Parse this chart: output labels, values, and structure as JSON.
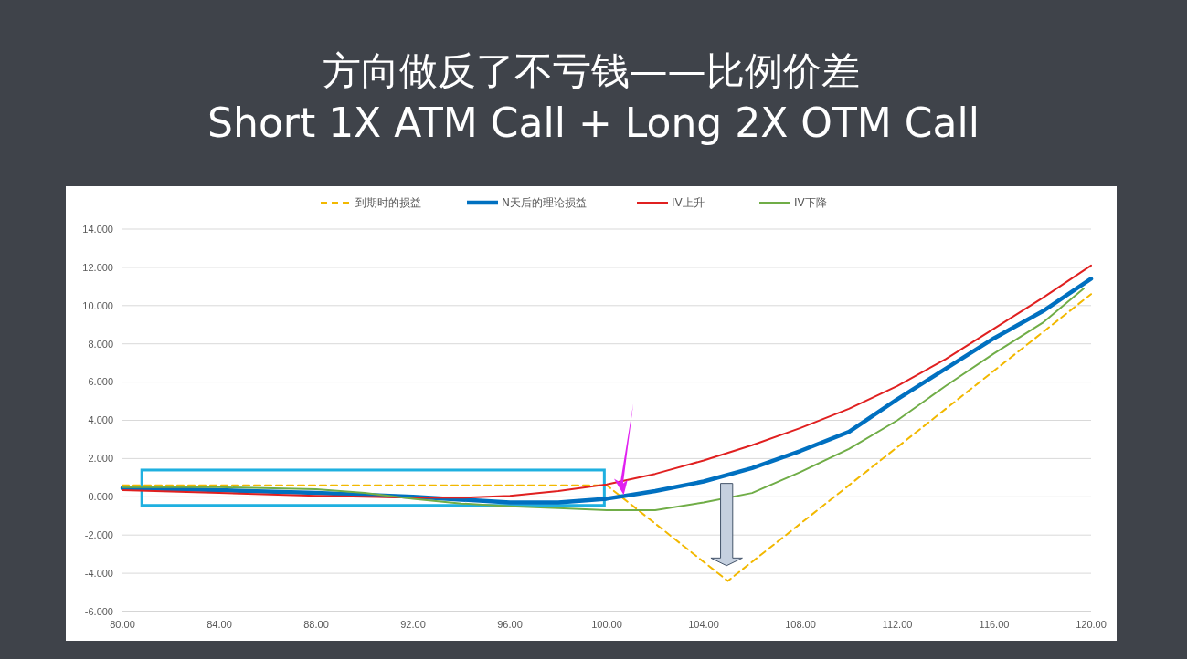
{
  "chart_data": {
    "type": "line",
    "title": "方向做反了不亏钱——比例价差",
    "subtitle": "Short 1X ATM Call + Long 2X OTM Call",
    "xlim": [
      80,
      120
    ],
    "ylim": [
      -6,
      14
    ],
    "xticks": [
      {
        "value": 80,
        "label": "80.00"
      },
      {
        "value": 84,
        "label": "84.00"
      },
      {
        "value": 88,
        "label": "88.00"
      },
      {
        "value": 92,
        "label": "92.00"
      },
      {
        "value": 96,
        "label": "96.00"
      },
      {
        "value": 100,
        "label": "100.00"
      },
      {
        "value": 104,
        "label": "104.00"
      },
      {
        "value": 108,
        "label": "108.00"
      },
      {
        "value": 112,
        "label": "112.00"
      },
      {
        "value": 116,
        "label": "116.00"
      },
      {
        "value": 120,
        "label": "120.00"
      }
    ],
    "yticks": [
      {
        "value": -6,
        "label": "-6.000"
      },
      {
        "value": -4,
        "label": "-4.000"
      },
      {
        "value": -2,
        "label": "-2.000"
      },
      {
        "value": 0,
        "label": "0.000"
      },
      {
        "value": 2,
        "label": "2.000"
      },
      {
        "value": 4,
        "label": "4.000"
      },
      {
        "value": 6,
        "label": "6.000"
      },
      {
        "value": 8,
        "label": "8.000"
      },
      {
        "value": 10,
        "label": "10.000"
      },
      {
        "value": 12,
        "label": "12.000"
      },
      {
        "value": 14,
        "label": "14.000"
      }
    ],
    "grid": "y",
    "legend": "top",
    "marker": "none",
    "series": [
      {
        "name": "到期时的损益",
        "color": "#f2b800",
        "line_style": "dashed",
        "x": [
          80,
          100,
          105,
          120
        ],
        "values": [
          0.6,
          0.6,
          -4.4,
          10.6
        ]
      },
      {
        "name": "N天后的理论损益",
        "color": "#0070c0",
        "line_style": "solid",
        "x": [
          80,
          84,
          88,
          92,
          94,
          96,
          98,
          100,
          101,
          102,
          104,
          106,
          108,
          110,
          112,
          114,
          116,
          118,
          120
        ],
        "values": [
          0.45,
          0.35,
          0.2,
          0,
          -0.15,
          -0.3,
          -0.3,
          -0.1,
          0.1,
          0.3,
          0.8,
          1.5,
          2.4,
          3.4,
          5.1,
          6.7,
          8.3,
          9.7,
          11.4
        ]
      },
      {
        "name": "IV上升",
        "color": "#e02020",
        "line_style": "solid",
        "x": [
          80,
          84,
          88,
          92,
          94,
          96,
          98,
          100,
          102,
          104,
          106,
          108,
          110,
          112,
          114,
          116,
          118,
          120
        ],
        "values": [
          0.35,
          0.2,
          0.05,
          -0.05,
          -0.05,
          0.05,
          0.3,
          0.65,
          1.2,
          1.9,
          2.7,
          3.6,
          4.6,
          5.8,
          7.2,
          8.8,
          10.4,
          12.1
        ]
      },
      {
        "name": "IV下降",
        "color": "#70ad47",
        "line_style": "solid",
        "x": [
          80,
          84,
          88,
          90,
          92,
          94,
          96,
          98,
          100,
          102,
          104,
          106,
          108,
          110,
          112,
          114,
          116,
          118,
          119.7
        ],
        "values": [
          0.5,
          0.5,
          0.4,
          0.2,
          -0.1,
          -0.35,
          -0.5,
          -0.6,
          -0.7,
          -0.7,
          -0.3,
          0.2,
          1.3,
          2.5,
          4.0,
          5.8,
          7.5,
          9.1,
          10.9
        ]
      }
    ]
  }
}
